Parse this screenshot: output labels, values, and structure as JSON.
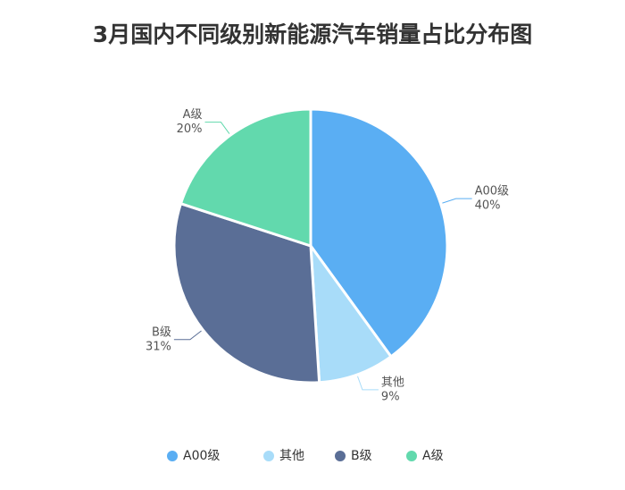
{
  "chart_data": {
    "type": "pie",
    "title": "3月国内不同级别新能源汽车销量占比分布图",
    "categories": [
      "A00级",
      "其他",
      "B级",
      "A级"
    ],
    "values": [
      40,
      9,
      31,
      20
    ],
    "value_labels": [
      "40%",
      "9%",
      "31%",
      "20%"
    ],
    "colors": [
      "#5aaef3",
      "#a8dcf9",
      "#5a6e96",
      "#62d9ad"
    ],
    "legend": "bottom"
  }
}
